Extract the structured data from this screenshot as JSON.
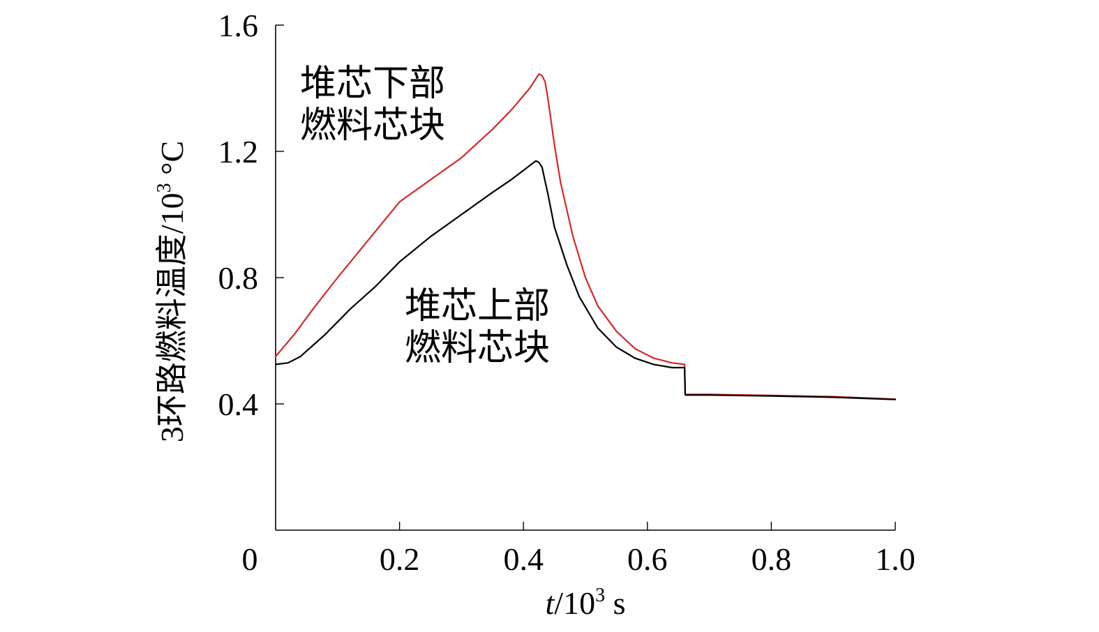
{
  "chart_data": {
    "type": "line",
    "title": "",
    "xlabel_italic": "t",
    "xlabel_rest": "/10",
    "xlabel_sup": "3",
    "xlabel_unit": " s",
    "ylabel_main": "3环路燃料温度/10",
    "ylabel_sup": "3",
    "ylabel_unit": " °C",
    "xlim": [
      0,
      1.0
    ],
    "ylim": [
      0,
      1.6
    ],
    "xticks": [
      0,
      0.2,
      0.4,
      0.6,
      0.8,
      1.0
    ],
    "xtick_labels": [
      "0",
      "0.2",
      "0.4",
      "0.6",
      "0.8",
      "1.0"
    ],
    "yticks": [
      0.4,
      0.8,
      1.2,
      1.6
    ],
    "ytick_labels": [
      "0.4",
      "0.8",
      "1.2",
      "1.6"
    ],
    "grid": false,
    "annotations": [
      {
        "id": "lower",
        "lines": [
          "堆芯下部",
          "燃料芯块"
        ]
      },
      {
        "id": "upper",
        "lines": [
          "堆芯上部",
          "燃料芯块"
        ]
      }
    ],
    "series": [
      {
        "id": "lower",
        "color": "#d62728",
        "points": [
          [
            0.0,
            0.55
          ],
          [
            0.03,
            0.62
          ],
          [
            0.06,
            0.7
          ],
          [
            0.1,
            0.8
          ],
          [
            0.15,
            0.92
          ],
          [
            0.2,
            1.04
          ],
          [
            0.25,
            1.11
          ],
          [
            0.3,
            1.18
          ],
          [
            0.35,
            1.27
          ],
          [
            0.38,
            1.33
          ],
          [
            0.41,
            1.4
          ],
          [
            0.42,
            1.43
          ],
          [
            0.425,
            1.445
          ],
          [
            0.43,
            1.44
          ],
          [
            0.435,
            1.42
          ],
          [
            0.44,
            1.36
          ],
          [
            0.45,
            1.22
          ],
          [
            0.46,
            1.1
          ],
          [
            0.48,
            0.93
          ],
          [
            0.5,
            0.8
          ],
          [
            0.52,
            0.71
          ],
          [
            0.55,
            0.63
          ],
          [
            0.58,
            0.575
          ],
          [
            0.61,
            0.545
          ],
          [
            0.64,
            0.53
          ],
          [
            0.66,
            0.525
          ],
          [
            0.661,
            0.43
          ],
          [
            0.7,
            0.43
          ],
          [
            0.8,
            0.427
          ],
          [
            0.9,
            0.423
          ],
          [
            1.0,
            0.415
          ]
        ]
      },
      {
        "id": "upper",
        "color": "#000000",
        "points": [
          [
            0.0,
            0.525
          ],
          [
            0.02,
            0.53
          ],
          [
            0.04,
            0.55
          ],
          [
            0.08,
            0.62
          ],
          [
            0.12,
            0.7
          ],
          [
            0.16,
            0.77
          ],
          [
            0.2,
            0.85
          ],
          [
            0.25,
            0.93
          ],
          [
            0.3,
            1.0
          ],
          [
            0.35,
            1.07
          ],
          [
            0.38,
            1.11
          ],
          [
            0.4,
            1.14
          ],
          [
            0.42,
            1.17
          ],
          [
            0.425,
            1.165
          ],
          [
            0.43,
            1.15
          ],
          [
            0.44,
            1.06
          ],
          [
            0.45,
            0.96
          ],
          [
            0.47,
            0.84
          ],
          [
            0.49,
            0.74
          ],
          [
            0.52,
            0.64
          ],
          [
            0.55,
            0.58
          ],
          [
            0.58,
            0.545
          ],
          [
            0.61,
            0.525
          ],
          [
            0.64,
            0.515
          ],
          [
            0.66,
            0.515
          ],
          [
            0.661,
            0.428
          ],
          [
            0.7,
            0.428
          ],
          [
            0.8,
            0.425
          ],
          [
            0.9,
            0.421
          ],
          [
            1.0,
            0.414
          ]
        ]
      }
    ]
  }
}
